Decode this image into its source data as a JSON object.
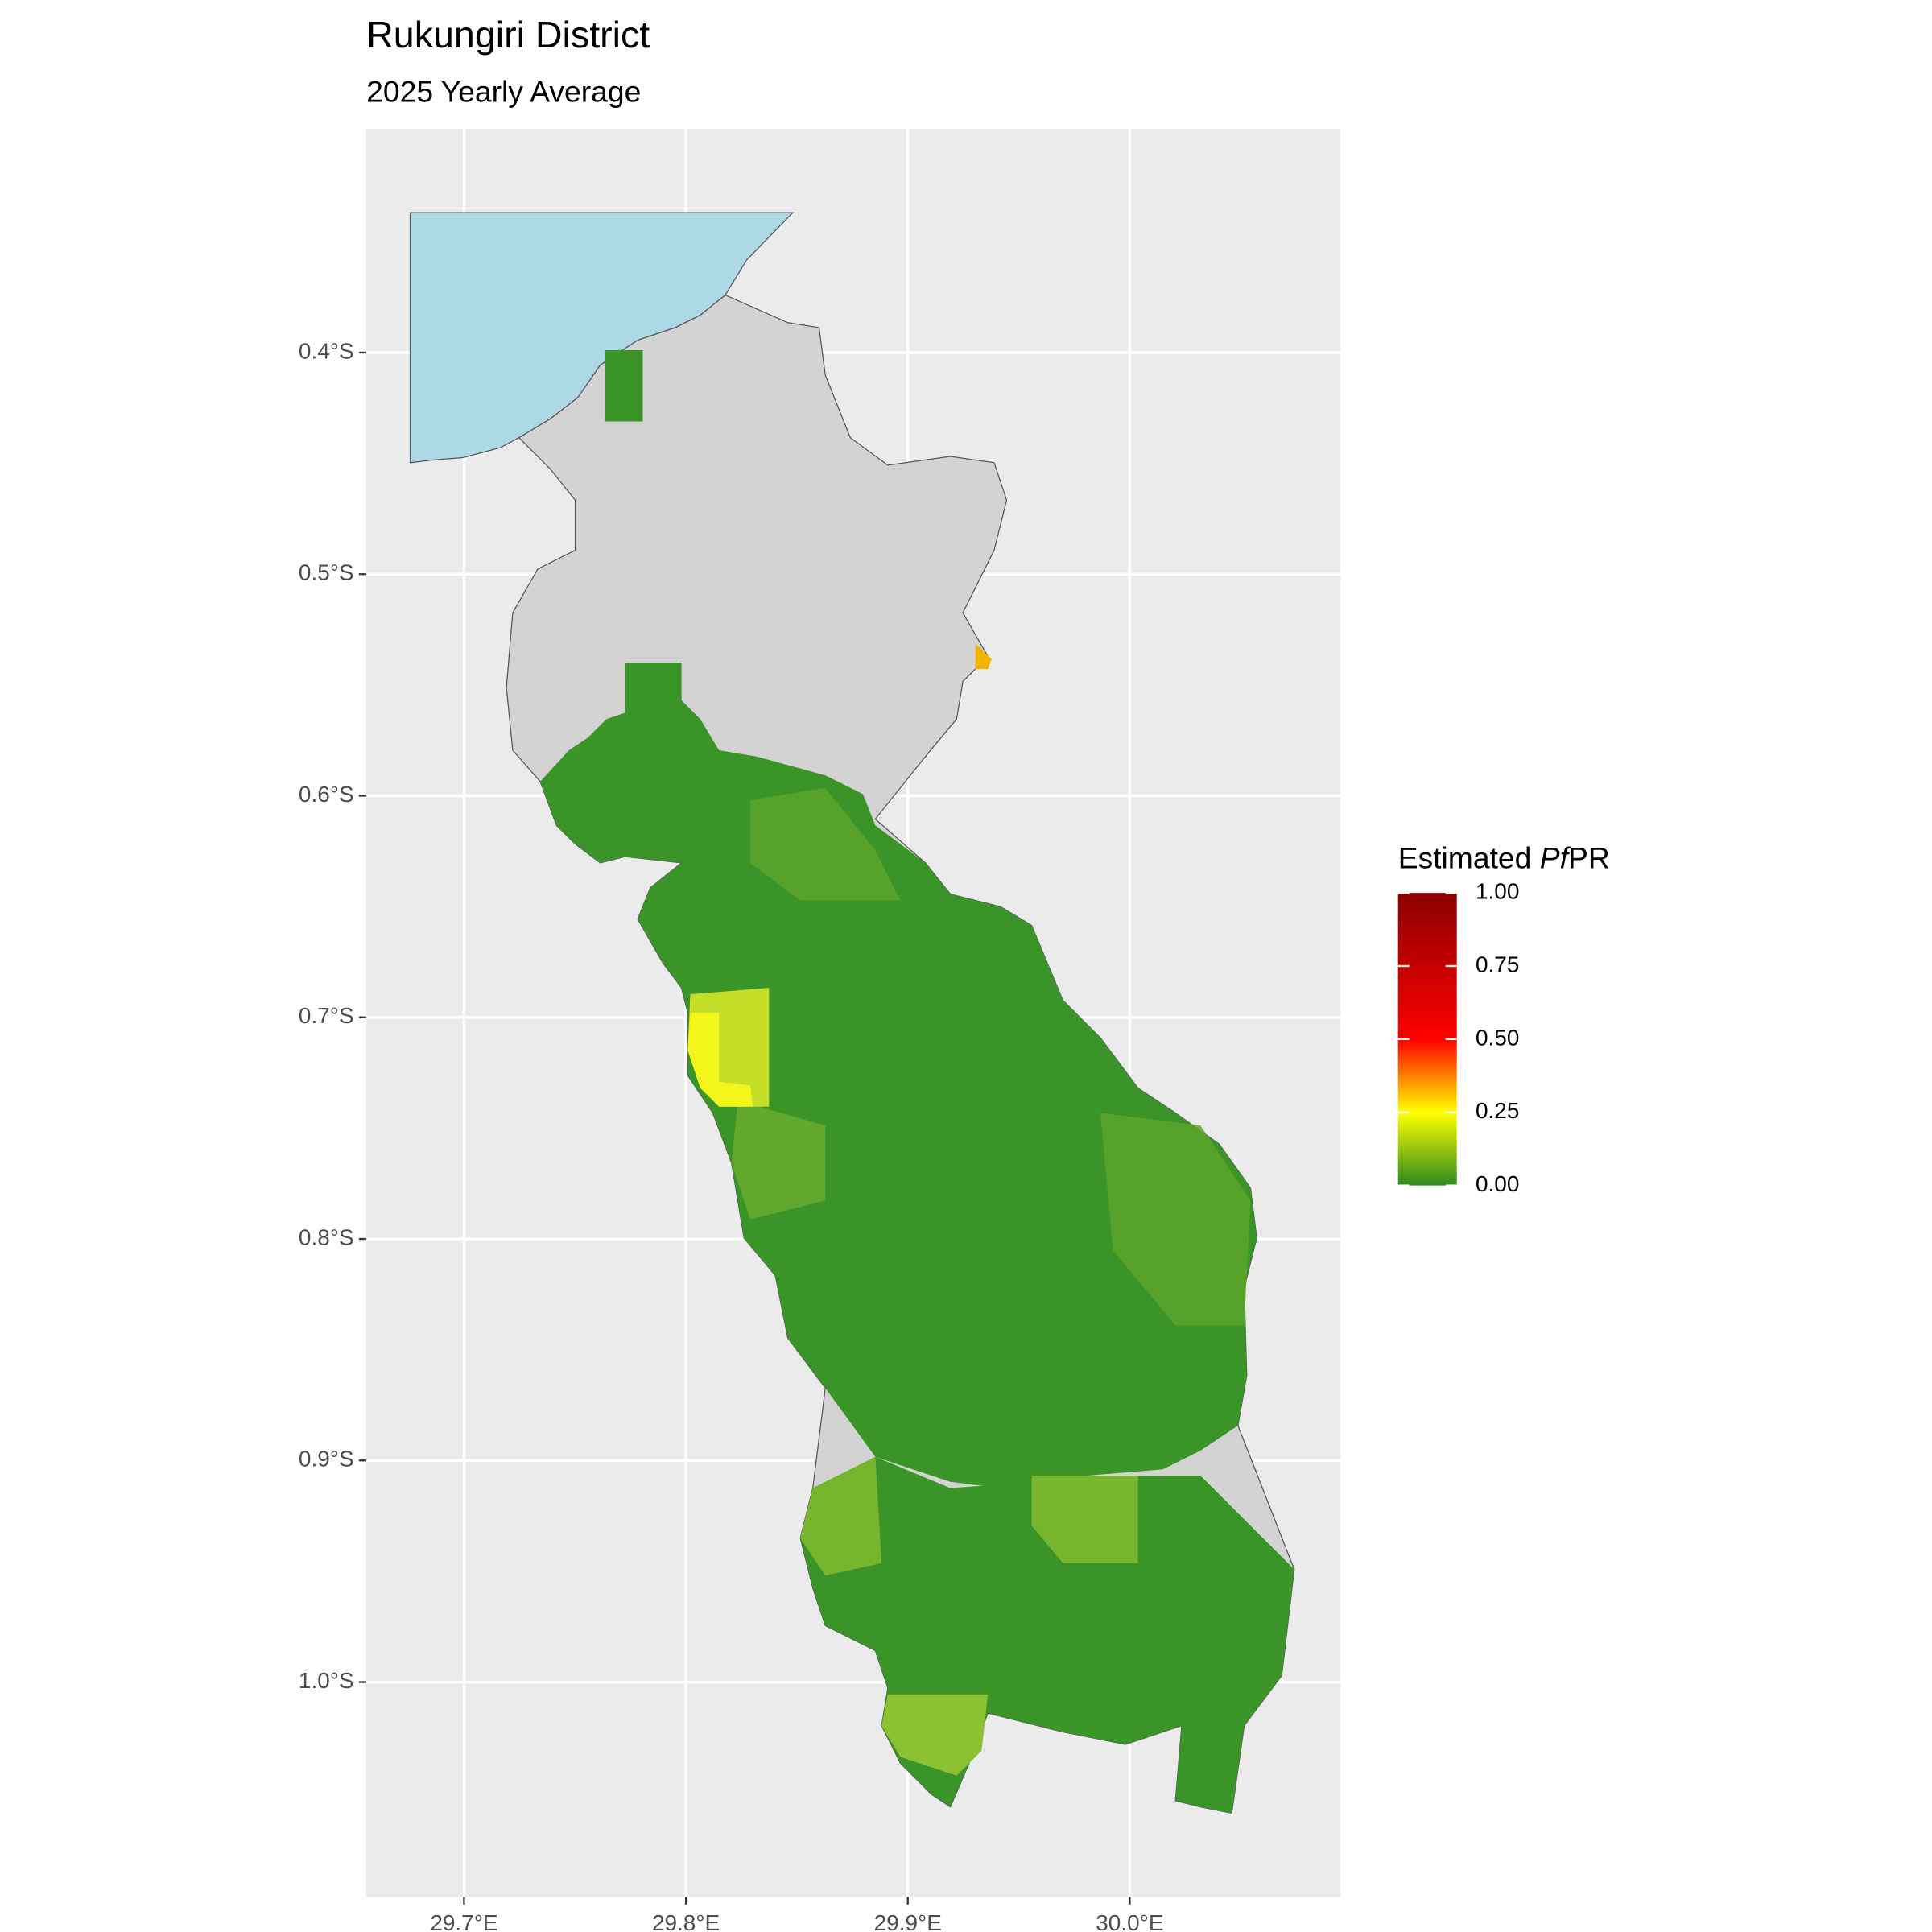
{
  "chart_data": {
    "type": "map",
    "title": "Rukungiri District",
    "subtitle": "2025 Yearly Average",
    "xlim": [
      29.656,
      30.095
    ],
    "ylim": [
      -1.097,
      -0.299
    ],
    "xticks": [
      {
        "value": 29.7,
        "label": "29.7°E"
      },
      {
        "value": 29.8,
        "label": "29.8°E"
      },
      {
        "value": 29.9,
        "label": "29.9°E"
      },
      {
        "value": 30.0,
        "label": "30.0°E"
      }
    ],
    "yticks": [
      {
        "value": -0.4,
        "label": "0.4°S"
      },
      {
        "value": -0.5,
        "label": "0.5°S"
      },
      {
        "value": -0.6,
        "label": "0.6°S"
      },
      {
        "value": -0.7,
        "label": "0.7°S"
      },
      {
        "value": -0.8,
        "label": "0.8°S"
      },
      {
        "value": -0.9,
        "label": "0.9°S"
      },
      {
        "value": -1.0,
        "label": "1.0°S"
      }
    ],
    "grid": true,
    "legend": {
      "title_parts": [
        "Estimated ",
        "Pf",
        "PR"
      ],
      "limits": [
        0,
        1
      ],
      "ticks": [
        {
          "value": 1,
          "label": "1.00"
        },
        0.75,
        {
          "value": 0.5,
          "label": "0.50"
        },
        0.25,
        {
          "value": 0,
          "label": "0.00"
        }
      ]
    }
  }
}
